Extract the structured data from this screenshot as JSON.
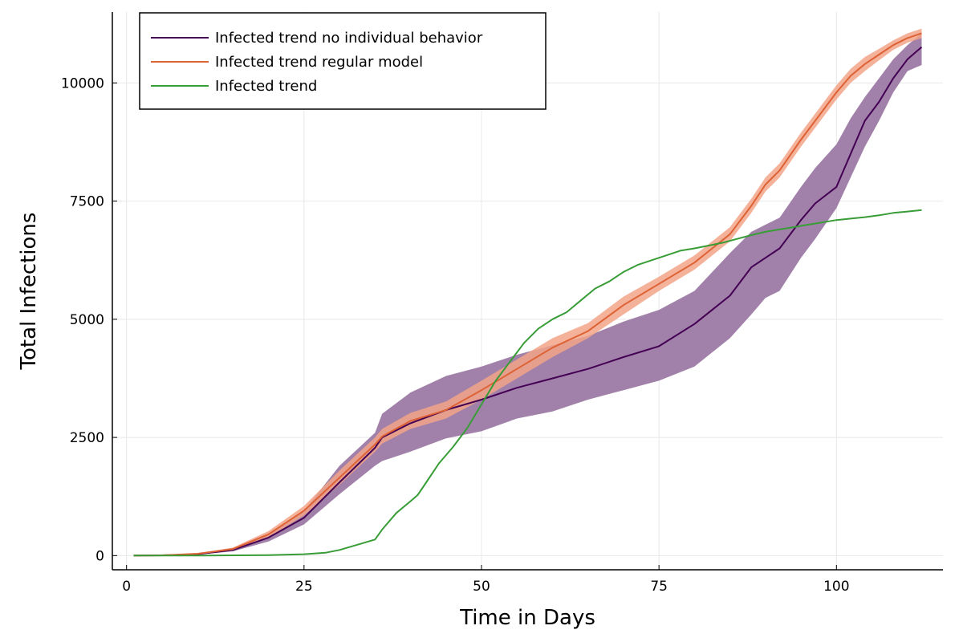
{
  "chart_data": {
    "type": "line",
    "xlabel": "Time in Days",
    "ylabel": "Total Infections",
    "xlim": [
      -2,
      115
    ],
    "ylim": [
      -300,
      11500
    ],
    "x_ticks": [
      0,
      25,
      50,
      75,
      100
    ],
    "y_ticks": [
      0,
      2500,
      5000,
      7500,
      10000
    ],
    "x_tick_labels": [
      "0",
      "25",
      "50",
      "75",
      "100"
    ],
    "y_tick_labels": [
      "0",
      "2500",
      "5000",
      "7500",
      "10000"
    ],
    "grid": true,
    "legend_position": "top-left",
    "series": [
      {
        "name": "Infected trend no individual behavior",
        "color": "#440154",
        "band_color": "#9c7aa4",
        "x": [
          1,
          5,
          10,
          15,
          20,
          25,
          30,
          35,
          36,
          40,
          45,
          50,
          55,
          60,
          65,
          70,
          75,
          80,
          85,
          88,
          90,
          92,
          95,
          97,
          100,
          102,
          104,
          106,
          108,
          110,
          112
        ],
        "y": [
          0,
          5,
          30,
          120,
          380,
          800,
          1550,
          2280,
          2500,
          2800,
          3080,
          3300,
          3550,
          3750,
          3950,
          4200,
          4430,
          4900,
          5500,
          6100,
          6300,
          6500,
          7100,
          7450,
          7800,
          8500,
          9200,
          9600,
          10100,
          10500,
          10760
        ],
        "lower": [
          0,
          5,
          20,
          90,
          300,
          660,
          1300,
          1900,
          2000,
          2200,
          2480,
          2630,
          2900,
          3050,
          3300,
          3500,
          3700,
          4000,
          4600,
          5100,
          5450,
          5600,
          6300,
          6700,
          7350,
          8000,
          8650,
          9200,
          9800,
          10250,
          10380
        ],
        "upper": [
          0,
          5,
          40,
          140,
          470,
          950,
          1900,
          2600,
          3000,
          3450,
          3800,
          4000,
          4250,
          4450,
          4650,
          4950,
          5200,
          5600,
          6400,
          6850,
          7000,
          7150,
          7800,
          8200,
          8700,
          9250,
          9700,
          10100,
          10500,
          10800,
          11050
        ]
      },
      {
        "name": "Infected trend regular model",
        "color": "#dd6235",
        "band_color": "#f3a488",
        "x": [
          1,
          5,
          10,
          15,
          20,
          25,
          30,
          35,
          36,
          40,
          45,
          50,
          55,
          60,
          65,
          70,
          75,
          80,
          85,
          88,
          90,
          92,
          95,
          97,
          100,
          102,
          104,
          106,
          108,
          110,
          112
        ],
        "y": [
          0,
          5,
          40,
          140,
          450,
          950,
          1650,
          2350,
          2520,
          2850,
          3080,
          3500,
          3950,
          4400,
          4750,
          5300,
          5750,
          6200,
          6800,
          7400,
          7850,
          8150,
          8800,
          9200,
          9800,
          10150,
          10400,
          10600,
          10800,
          10950,
          11050
        ],
        "lower": [
          0,
          5,
          30,
          110,
          380,
          850,
          1500,
          2200,
          2370,
          2680,
          2900,
          3300,
          3750,
          4200,
          4600,
          5100,
          5600,
          6050,
          6650,
          7250,
          7700,
          8000,
          8650,
          9050,
          9650,
          10000,
          10250,
          10480,
          10700,
          10850,
          10950
        ],
        "upper": [
          0,
          5,
          50,
          170,
          520,
          1050,
          1800,
          2500,
          2680,
          3020,
          3260,
          3700,
          4150,
          4600,
          4920,
          5480,
          5900,
          6350,
          6950,
          7550,
          8000,
          8300,
          8950,
          9350,
          9950,
          10300,
          10550,
          10720,
          10900,
          11050,
          11150
        ]
      },
      {
        "name": "Infected trend",
        "color": "#389c37",
        "x": [
          1,
          10,
          20,
          25,
          28,
          30,
          33,
          35,
          36,
          38,
          40,
          41,
          42,
          44,
          46,
          48,
          50,
          52,
          54,
          56,
          58,
          60,
          62,
          64,
          66,
          68,
          70,
          72,
          74,
          76,
          78,
          80,
          82,
          84,
          86,
          88,
          90,
          92,
          94,
          96,
          98,
          100,
          102,
          104,
          106,
          108,
          110,
          112
        ],
        "y": [
          0,
          0,
          10,
          30,
          60,
          120,
          250,
          340,
          550,
          900,
          1150,
          1280,
          1500,
          1950,
          2300,
          2700,
          3200,
          3700,
          4100,
          4500,
          4800,
          5000,
          5150,
          5400,
          5650,
          5800,
          6000,
          6150,
          6250,
          6350,
          6450,
          6500,
          6560,
          6620,
          6700,
          6780,
          6850,
          6900,
          6950,
          7000,
          7050,
          7100,
          7130,
          7160,
          7200,
          7250,
          7280,
          7310
        ]
      }
    ]
  }
}
